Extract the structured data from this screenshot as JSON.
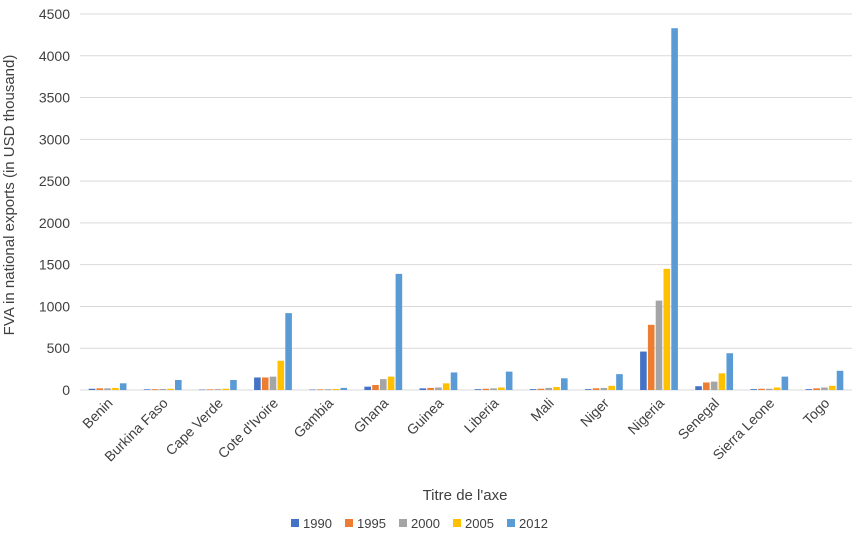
{
  "chart_data": {
    "type": "bar",
    "title": "",
    "xlabel": "Titre de l'axe",
    "ylabel": "FVA in  national exports  (in USD thousand)",
    "ylim": [
      0,
      4500
    ],
    "yticks": [
      0,
      500,
      1000,
      1500,
      2000,
      2500,
      3000,
      3500,
      4000,
      4500
    ],
    "grid": true,
    "legend_position": "bottom",
    "categories": [
      "Benin",
      "Burkina Faso",
      "Cape Verde",
      "Cote d'Ivoire",
      "Gambia",
      "Ghana",
      "Guinea",
      "Liberia",
      "Mali",
      "Niger",
      "Nigeria",
      "Senegal",
      "Sierra Leone",
      "Togo"
    ],
    "series": [
      {
        "name": "1990",
        "color": "#4472C4",
        "values": [
          15,
          8,
          5,
          150,
          5,
          40,
          20,
          10,
          10,
          10,
          460,
          45,
          10,
          10
        ]
      },
      {
        "name": "1995",
        "color": "#ED7D31",
        "values": [
          20,
          10,
          8,
          150,
          8,
          60,
          25,
          15,
          15,
          20,
          780,
          90,
          15,
          20
        ]
      },
      {
        "name": "2000",
        "color": "#A5A5A5",
        "values": [
          20,
          12,
          10,
          160,
          10,
          130,
          30,
          20,
          25,
          25,
          1070,
          100,
          15,
          30
        ]
      },
      {
        "name": "2005",
        "color": "#FFC000",
        "values": [
          25,
          15,
          15,
          350,
          12,
          160,
          80,
          30,
          35,
          50,
          1450,
          200,
          30,
          50
        ]
      },
      {
        "name": "2012",
        "color": "#5B9BD5",
        "values": [
          80,
          120,
          120,
          920,
          25,
          1390,
          210,
          220,
          140,
          190,
          4330,
          440,
          160,
          230
        ]
      }
    ]
  }
}
